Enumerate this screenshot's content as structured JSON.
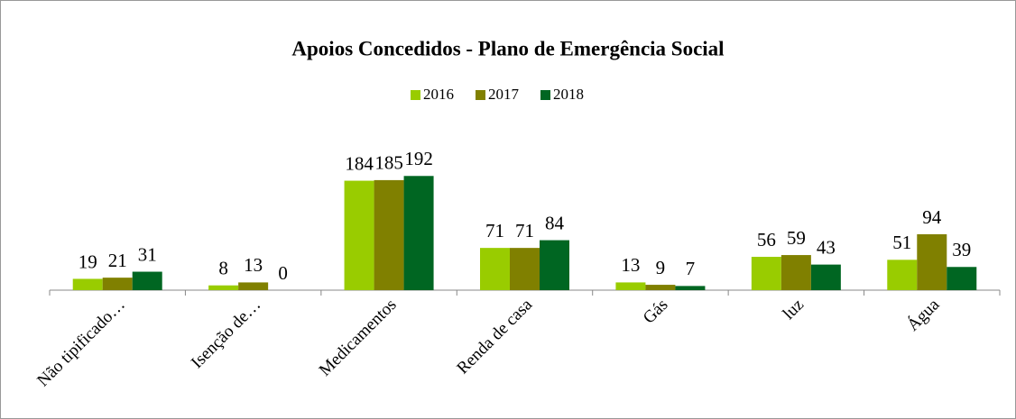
{
  "chart_data": {
    "type": "bar",
    "title": "Apoios Concedidos - Plano de Emergência Social",
    "categories": [
      "Não tipificado…",
      "Isenção de…",
      "Medicamentos",
      "Renda de casa",
      "Gás",
      "luz",
      "Água"
    ],
    "series": [
      {
        "name": "2016",
        "color": "#99cc00",
        "values": [
          19,
          8,
          184,
          71,
          13,
          56,
          51
        ]
      },
      {
        "name": "2017",
        "color": "#808000",
        "values": [
          21,
          13,
          185,
          71,
          9,
          59,
          94
        ]
      },
      {
        "name": "2018",
        "color": "#006622",
        "values": [
          31,
          0,
          192,
          84,
          7,
          43,
          39
        ]
      }
    ],
    "legend": "top"
  }
}
